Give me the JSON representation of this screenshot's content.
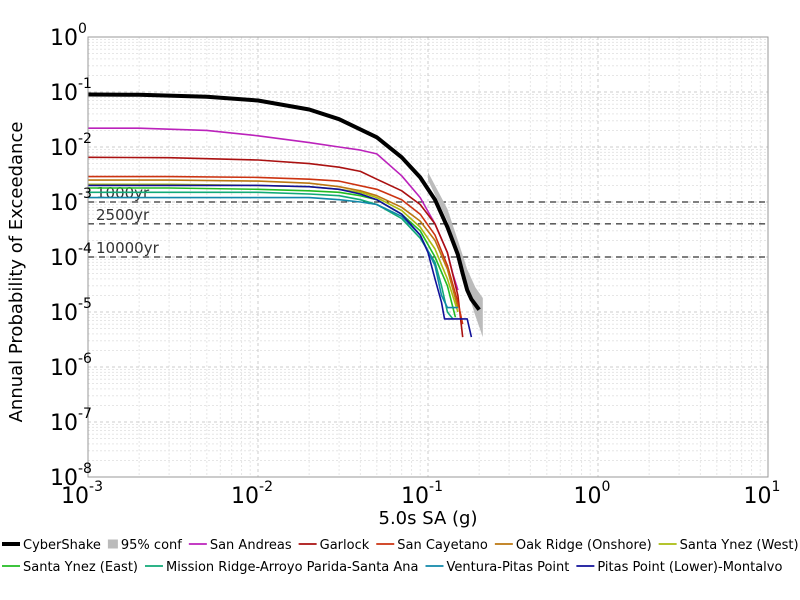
{
  "chart_data": {
    "type": "line",
    "xscale": "log",
    "yscale": "log",
    "xlim": [
      0.001,
      10
    ],
    "ylim": [
      1e-08,
      1
    ],
    "grid": true,
    "legend_placement": "bottom",
    "xlabel": "5.0s SA (g)",
    "ylabel": "Annual Probability of Exceedance",
    "x_ticks": [
      {
        "base": "10",
        "exp": "-3",
        "value": 0.001
      },
      {
        "base": "10",
        "exp": "-2",
        "value": 0.01
      },
      {
        "base": "10",
        "exp": "-1",
        "value": 0.1
      },
      {
        "base": "10",
        "exp": "0",
        "value": 1
      },
      {
        "base": "10",
        "exp": "1",
        "value": 10
      }
    ],
    "y_ticks": [
      {
        "base": "10",
        "exp": "0",
        "value": 1
      },
      {
        "base": "10",
        "exp": "-1",
        "value": 0.1
      },
      {
        "base": "10",
        "exp": "-2",
        "value": 0.01
      },
      {
        "base": "10",
        "exp": "-3",
        "value": 0.001
      },
      {
        "base": "10",
        "exp": "-4",
        "value": 0.0001
      },
      {
        "base": "10",
        "exp": "-5",
        "value": 1e-05
      },
      {
        "base": "10",
        "exp": "-6",
        "value": 1e-06
      },
      {
        "base": "10",
        "exp": "-7",
        "value": 1e-07
      },
      {
        "base": "10",
        "exp": "-8",
        "value": 1e-08
      }
    ],
    "reference_lines": [
      {
        "label": "1000yr",
        "value": 0.001
      },
      {
        "label": "2500yr",
        "value": 0.0004
      },
      {
        "label": "10000yr",
        "value": 0.0001
      }
    ],
    "confidence_band": {
      "name": "95% conf",
      "color": "#bbbbbb",
      "x": [
        0.1,
        0.13,
        0.15,
        0.17,
        0.19,
        0.21
      ],
      "lower": [
        0.0025,
        0.00045,
        0.00011,
        2.5e-05,
        8.5e-06,
        3.5e-06
      ],
      "upper": [
        0.0035,
        0.00075,
        0.0002,
        6e-05,
        2.8e-05,
        1.8e-05
      ]
    },
    "series": [
      {
        "name": "CyberShake",
        "color": "#000000",
        "width": 4,
        "x": [
          0.001,
          0.002,
          0.005,
          0.01,
          0.02,
          0.03,
          0.05,
          0.07,
          0.09,
          0.11,
          0.13,
          0.15,
          0.16,
          0.17,
          0.18,
          0.2
        ],
        "y": [
          0.09,
          0.089,
          0.082,
          0.07,
          0.048,
          0.032,
          0.015,
          0.0065,
          0.0028,
          0.0011,
          0.00035,
          0.00011,
          5e-05,
          2.5e-05,
          1.7e-05,
          1.1e-05
        ]
      },
      {
        "name": "San Andreas",
        "color": "#bb22bb",
        "width": 1.6,
        "x": [
          0.001,
          0.002,
          0.005,
          0.01,
          0.02,
          0.03,
          0.04,
          0.05,
          0.07,
          0.09,
          0.11,
          0.13,
          0.14,
          0.15
        ],
        "y": [
          0.022,
          0.022,
          0.02,
          0.016,
          0.012,
          0.01,
          0.0088,
          0.0075,
          0.003,
          0.0012,
          0.0004,
          0.00012,
          5e-05,
          2.5e-05
        ]
      },
      {
        "name": "Garlock",
        "color": "#aa1111",
        "width": 1.6,
        "x": [
          0.001,
          0.003,
          0.01,
          0.02,
          0.03,
          0.04,
          0.05,
          0.07,
          0.09,
          0.11,
          0.13,
          0.15,
          0.16
        ],
        "y": [
          0.0065,
          0.0064,
          0.0058,
          0.005,
          0.0043,
          0.0036,
          0.0026,
          0.0016,
          0.0009,
          0.0004,
          0.00012,
          2e-05,
          3.5e-06
        ]
      },
      {
        "name": "San Cayetano",
        "color": "#cc3311",
        "width": 1.6,
        "x": [
          0.001,
          0.003,
          0.01,
          0.02,
          0.03,
          0.05,
          0.07,
          0.09,
          0.11,
          0.13,
          0.15,
          0.16
        ],
        "y": [
          0.0029,
          0.0029,
          0.0028,
          0.0026,
          0.0024,
          0.0017,
          0.0011,
          0.0006,
          0.00025,
          7e-05,
          1.5e-05,
          6e-06
        ]
      },
      {
        "name": "Oak Ridge (Onshore)",
        "color": "#bb7711",
        "width": 1.6,
        "x": [
          0.001,
          0.003,
          0.01,
          0.02,
          0.03,
          0.04,
          0.05,
          0.07,
          0.09,
          0.11,
          0.13,
          0.15
        ],
        "y": [
          0.0025,
          0.0025,
          0.0024,
          0.0022,
          0.0019,
          0.0016,
          0.0013,
          0.0008,
          0.00045,
          0.0002,
          6e-05,
          1.2e-05
        ]
      },
      {
        "name": "Santa Ynez (West)",
        "color": "#aabb11",
        "width": 1.6,
        "x": [
          0.001,
          0.003,
          0.01,
          0.02,
          0.03,
          0.04,
          0.05,
          0.07,
          0.09,
          0.11,
          0.13,
          0.15
        ],
        "y": [
          0.0021,
          0.0021,
          0.002,
          0.0019,
          0.0017,
          0.0015,
          0.0012,
          0.0007,
          0.00035,
          0.00014,
          4e-05,
          1e-05
        ]
      },
      {
        "name": "Santa Ynez (East)",
        "color": "#22bb22",
        "width": 1.6,
        "x": [
          0.001,
          0.003,
          0.01,
          0.02,
          0.03,
          0.04,
          0.05,
          0.07,
          0.09,
          0.11,
          0.13,
          0.145
        ],
        "y": [
          0.0018,
          0.0018,
          0.0017,
          0.0016,
          0.0015,
          0.0013,
          0.0011,
          0.0006,
          0.0003,
          0.0001,
          3e-05,
          8e-06
        ]
      },
      {
        "name": "Mission Ridge-Arroyo Parida-Santa Ana",
        "color": "#11aa77",
        "width": 1.6,
        "x": [
          0.001,
          0.003,
          0.01,
          0.02,
          0.03,
          0.04,
          0.05,
          0.07,
          0.09,
          0.11,
          0.12,
          0.13,
          0.14
        ],
        "y": [
          0.0015,
          0.0015,
          0.0015,
          0.0014,
          0.0013,
          0.0011,
          0.0009,
          0.0005,
          0.00022,
          8e-05,
          3e-05,
          1e-05,
          7.5e-06
        ]
      },
      {
        "name": "Ventura-Pitas Point",
        "color": "#1188aa",
        "width": 1.6,
        "x": [
          0.001,
          0.003,
          0.01,
          0.02,
          0.03,
          0.04,
          0.05,
          0.07,
          0.09,
          0.11,
          0.12,
          0.13,
          0.15
        ],
        "y": [
          0.0012,
          0.0012,
          0.0012,
          0.0012,
          0.0011,
          0.001,
          0.0009,
          0.00055,
          0.00025,
          7e-05,
          2e-05,
          1.2e-05,
          1.2e-05
        ]
      },
      {
        "name": "Pitas Point (Lower)-Montalvo",
        "color": "#111199",
        "width": 1.6,
        "x": [
          0.001,
          0.003,
          0.01,
          0.02,
          0.03,
          0.04,
          0.05,
          0.07,
          0.09,
          0.1,
          0.11,
          0.12,
          0.125,
          0.17,
          0.18
        ],
        "y": [
          0.002,
          0.002,
          0.002,
          0.0019,
          0.0017,
          0.0014,
          0.0011,
          0.0006,
          0.00025,
          0.00012,
          4e-05,
          1.5e-05,
          7.5e-06,
          7.5e-06,
          3.5e-06
        ]
      }
    ]
  }
}
